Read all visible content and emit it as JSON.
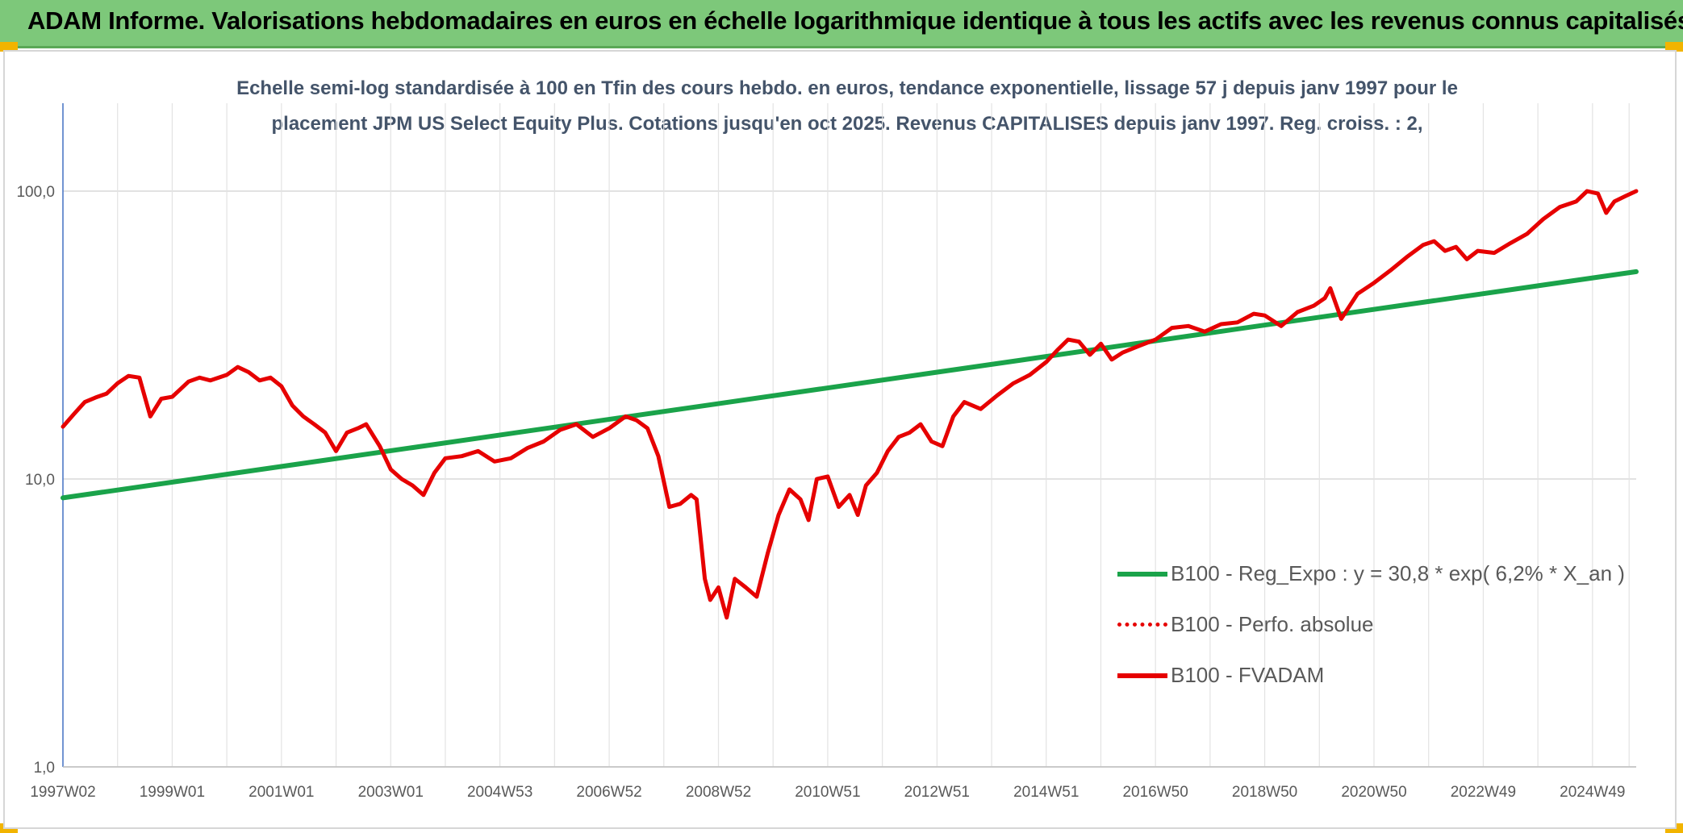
{
  "banner": {
    "title": "ADAM Informe. Valorisations hebdomadaires en euros en échelle logarithmique identique à tous les actifs avec les revenus connus capitalisés"
  },
  "colors": {
    "banner_bg": "#7dc87a",
    "corner_accent": "#f2b400",
    "trend": "#1aa34a",
    "series": "#e60000",
    "subtitle_text": "#44546a"
  },
  "chart_data": {
    "type": "line",
    "title": "Echelle semi-log standardisée à 100 en Tfin des cours hebdo. en euros, tendance exponentielle, lissage 57 j depuis janv 1997 pour le placement JPM US Select Equity Plus. Cotations jusqu'en oct 2025. Revenus CAPITALISES depuis janv 1997. Reg. croiss. : 2,",
    "y_scale": "log",
    "ylim": [
      1,
      100
    ],
    "y_ticks": [
      "1,0",
      "10,0",
      "100,0"
    ],
    "y_tick_values": [
      1,
      10,
      100
    ],
    "xlim": [
      1997.0,
      2025.8
    ],
    "x_ticks": [
      "1997W02",
      "1999W01",
      "2001W01",
      "2003W01",
      "2004W53",
      "2006W52",
      "2008W52",
      "2010W51",
      "2012W51",
      "2014W51",
      "2016W50",
      "2018W50",
      "2020W50",
      "2022W49",
      "2024W49"
    ],
    "x_tick_values": [
      1997.0,
      1999.0,
      2001.0,
      2003.0,
      2005.0,
      2007.0,
      2009.0,
      2011.0,
      2013.0,
      2015.0,
      2017.0,
      2019.0,
      2021.0,
      2023.0,
      2025.0
    ],
    "grid": true,
    "legend_position": "bottom-right",
    "series": [
      {
        "name": "B100 - Reg_Expo : y = 30,8 * exp( 6,2% *  X_an )",
        "style": "solid",
        "color": "#1aa34a",
        "x": [
          1997.0,
          2025.8
        ],
        "y": [
          8.6,
          52.5
        ]
      },
      {
        "name": "B100 - Perfo. absolue",
        "style": "dotted",
        "color": "#e60000",
        "x": [],
        "y": []
      },
      {
        "name": "B100 - FVADAM",
        "style": "solid",
        "color": "#e60000",
        "x": [
          1997.0,
          1997.2,
          1997.4,
          1997.6,
          1997.8,
          1998.0,
          1998.2,
          1998.4,
          1998.6,
          1998.8,
          1999.0,
          1999.15,
          1999.3,
          1999.5,
          1999.7,
          2000.0,
          2000.2,
          2000.4,
          2000.6,
          2000.8,
          2001.0,
          2001.2,
          2001.4,
          2001.6,
          2001.8,
          2002.0,
          2002.2,
          2002.4,
          2002.55,
          2002.8,
          2003.0,
          2003.2,
          2003.4,
          2003.6,
          2003.8,
          2004.0,
          2004.3,
          2004.6,
          2004.9,
          2005.2,
          2005.5,
          2005.8,
          2006.1,
          2006.4,
          2006.7,
          2007.0,
          2007.3,
          2007.5,
          2007.7,
          2007.9,
          2008.1,
          2008.3,
          2008.5,
          2008.6,
          2008.75,
          2008.85,
          2009.0,
          2009.15,
          2009.3,
          2009.5,
          2009.7,
          2009.9,
          2010.1,
          2010.3,
          2010.5,
          2010.65,
          2010.8,
          2011.0,
          2011.2,
          2011.4,
          2011.55,
          2011.7,
          2011.9,
          2012.1,
          2012.3,
          2012.5,
          2012.7,
          2012.9,
          2013.1,
          2013.3,
          2013.5,
          2013.8,
          2014.1,
          2014.4,
          2014.7,
          2015.0,
          2015.2,
          2015.4,
          2015.6,
          2015.8,
          2016.0,
          2016.2,
          2016.4,
          2016.7,
          2017.0,
          2017.3,
          2017.6,
          2017.9,
          2018.2,
          2018.5,
          2018.8,
          2019.0,
          2019.3,
          2019.6,
          2019.9,
          2020.1,
          2020.2,
          2020.4,
          2020.7,
          2021.0,
          2021.3,
          2021.6,
          2021.9,
          2022.1,
          2022.3,
          2022.5,
          2022.7,
          2022.9,
          2023.2,
          2023.5,
          2023.8,
          2024.1,
          2024.4,
          2024.7,
          2024.9,
          2025.1,
          2025.25,
          2025.4,
          2025.6,
          2025.8
        ],
        "y": [
          15.2,
          16.8,
          18.5,
          19.2,
          19.8,
          21.5,
          22.8,
          22.5,
          16.5,
          19.0,
          19.3,
          20.5,
          21.8,
          22.5,
          22.0,
          23.0,
          24.5,
          23.5,
          22.0,
          22.5,
          21.0,
          18.0,
          16.5,
          15.5,
          14.5,
          12.5,
          14.5,
          15.0,
          15.5,
          13.0,
          10.8,
          10.0,
          9.5,
          8.8,
          10.5,
          11.8,
          12.0,
          12.5,
          11.5,
          11.8,
          12.8,
          13.5,
          14.8,
          15.5,
          14.0,
          15.0,
          16.5,
          16.0,
          15.0,
          12.0,
          8.0,
          8.2,
          8.8,
          8.5,
          4.5,
          3.8,
          4.2,
          3.3,
          4.5,
          4.2,
          3.9,
          5.5,
          7.5,
          9.2,
          8.5,
          7.2,
          10.0,
          10.2,
          8.0,
          8.8,
          7.5,
          9.5,
          10.5,
          12.5,
          14.0,
          14.5,
          15.5,
          13.5,
          13.0,
          16.5,
          18.5,
          17.5,
          19.5,
          21.5,
          23.0,
          25.5,
          28.0,
          30.5,
          30.0,
          27.0,
          29.5,
          26.0,
          27.5,
          29.0,
          30.5,
          33.5,
          34.0,
          32.5,
          34.5,
          35.0,
          37.5,
          37.0,
          34.0,
          38.0,
          40.0,
          42.5,
          46.0,
          36.0,
          44.0,
          48.0,
          53.0,
          59.0,
          65.0,
          67.0,
          62.0,
          64.0,
          58.0,
          62.0,
          61.0,
          66.0,
          71.0,
          80.0,
          88.0,
          92.0,
          100.0,
          98.0,
          84.0,
          92.0,
          96.0,
          100.0
        ]
      }
    ]
  }
}
